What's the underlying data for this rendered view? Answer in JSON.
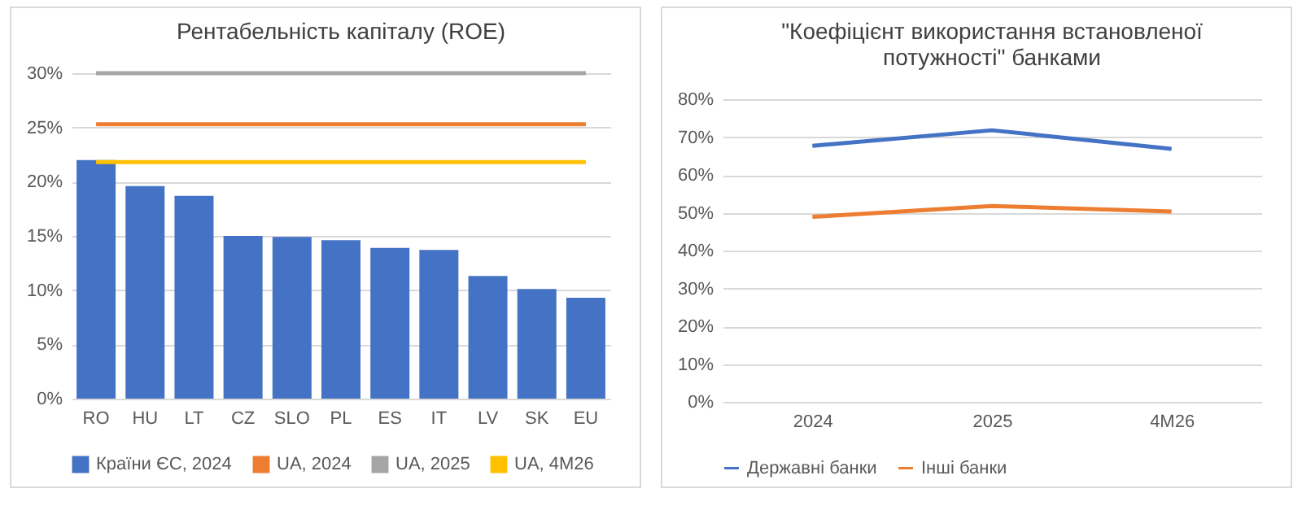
{
  "chart_data": [
    {
      "type": "bar",
      "title": "Рентабельність капіталу (ROE)",
      "categories": [
        "RO",
        "HU",
        "LT",
        "CZ",
        "SLO",
        "PL",
        "ES",
        "IT",
        "LV",
        "SK",
        "EU"
      ],
      "series": [
        {
          "name": "Країни ЄС, 2024",
          "color": "#4472c4",
          "values": [
            22.0,
            19.6,
            18.7,
            15.0,
            14.9,
            14.6,
            13.9,
            13.7,
            11.3,
            10.1,
            9.3
          ]
        },
        {
          "name": "UA, 2024",
          "type": "line",
          "color": "#ed7d31",
          "values": [
            25.3,
            25.3,
            25.3,
            25.3,
            25.3,
            25.3,
            25.3,
            25.3,
            25.3,
            25.3,
            25.3
          ]
        },
        {
          "name": "UA, 2025",
          "type": "line",
          "color": "#a5a5a5",
          "values": [
            30,
            30,
            30,
            30,
            30,
            30,
            30,
            30,
            30,
            30,
            30
          ]
        },
        {
          "name": "UA, 4M26",
          "type": "line",
          "color": "#ffc000",
          "values": [
            21.8,
            21.8,
            21.8,
            21.8,
            21.8,
            21.8,
            21.8,
            21.8,
            21.8,
            21.8,
            21.8
          ]
        }
      ],
      "ylim": [
        0,
        30
      ],
      "yticks": [
        {
          "value": 0,
          "label": "0%"
        },
        {
          "value": 5,
          "label": "5%"
        },
        {
          "value": 10,
          "label": "10%"
        },
        {
          "value": 15,
          "label": "15%"
        },
        {
          "value": 20,
          "label": "20%"
        },
        {
          "value": 25,
          "label": "25%"
        },
        {
          "value": 30,
          "label": "30%"
        }
      ],
      "grid": "y",
      "legend": "bottom",
      "marker": "none"
    },
    {
      "type": "line",
      "title": "\"Коефіцієнт використання встановленої потужності\" банками",
      "categories": [
        "2024",
        "2025",
        "4M26"
      ],
      "series": [
        {
          "name": "Державні банки",
          "color": "#4472c4",
          "values": [
            67.7,
            71.8,
            66.9
          ]
        },
        {
          "name": "Інші банки",
          "color": "#ed7d31",
          "values": [
            48.9,
            51.8,
            50.3
          ]
        }
      ],
      "ylim": [
        0,
        80
      ],
      "yticks": [
        {
          "value": 0,
          "label": "0%"
        },
        {
          "value": 10,
          "label": "10%"
        },
        {
          "value": 20,
          "label": "20%"
        },
        {
          "value": 30,
          "label": "30%"
        },
        {
          "value": 40,
          "label": "40%"
        },
        {
          "value": 50,
          "label": "50%"
        },
        {
          "value": 60,
          "label": "60%"
        },
        {
          "value": 70,
          "label": "70%"
        },
        {
          "value": 80,
          "label": "80%"
        }
      ],
      "grid": "y",
      "legend": "bottom",
      "marker": "none"
    }
  ]
}
